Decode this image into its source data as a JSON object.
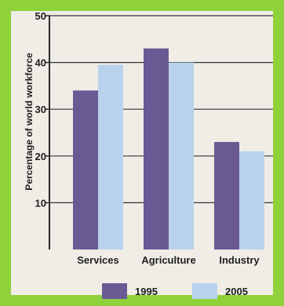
{
  "colors": {
    "background": "#8fd13a",
    "panel": "#f0ede6",
    "series_1995": "#6a5a93",
    "series_2005": "#b9d2ee"
  },
  "chart_data": {
    "type": "bar",
    "title": "",
    "xlabel": "",
    "ylabel": "Percentage of world workforce",
    "ylim": [
      0,
      50
    ],
    "yticks": [
      10,
      20,
      30,
      40,
      50
    ],
    "grid": true,
    "legend_position": "bottom",
    "categories": [
      "Services",
      "Agriculture",
      "Industry"
    ],
    "series": [
      {
        "name": "1995",
        "values": [
          34,
          43,
          23
        ]
      },
      {
        "name": "2005",
        "values": [
          39.5,
          40,
          21
        ]
      }
    ]
  }
}
